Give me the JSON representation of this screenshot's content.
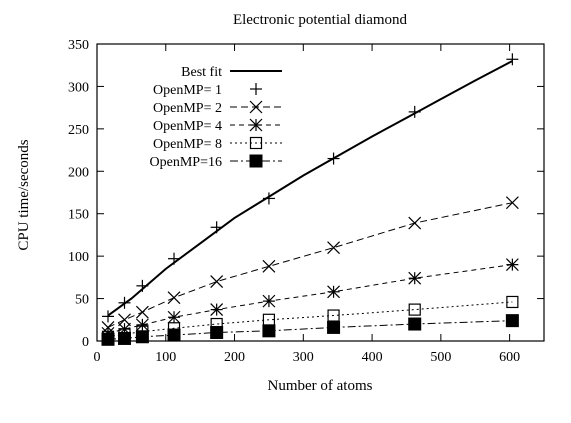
{
  "chart_data": {
    "type": "line",
    "title": "Electronic potential diamond",
    "xlabel": "Number of atoms",
    "ylabel": "CPU time/seconds",
    "xlim": [
      0,
      650
    ],
    "ylim": [
      0,
      350
    ],
    "xticks": [
      0,
      100,
      200,
      300,
      400,
      500,
      600
    ],
    "yticks": [
      0,
      50,
      100,
      150,
      200,
      250,
      300,
      350
    ],
    "grid": false,
    "legend_position": "top-left",
    "best_fit": {
      "name": "Best fit",
      "x": [
        16,
        50,
        100,
        150,
        200,
        250,
        300,
        350,
        400,
        450,
        500,
        550,
        604
      ],
      "y": [
        30,
        50,
        85,
        115,
        145,
        170,
        195,
        218,
        241,
        263,
        285,
        307,
        330
      ]
    },
    "series": [
      {
        "name": "OpenMP= 1",
        "marker": "plus",
        "x": [
          16,
          40,
          66,
          112,
          174,
          250,
          344,
          462,
          604
        ],
        "y": [
          29,
          45,
          65,
          97,
          134,
          168,
          215,
          270,
          332
        ]
      },
      {
        "name": "OpenMP= 2",
        "marker": "cross",
        "x": [
          16,
          40,
          66,
          112,
          174,
          250,
          344,
          462,
          604
        ],
        "y": [
          16,
          25,
          34,
          51,
          70,
          88,
          110,
          139,
          163
        ]
      },
      {
        "name": "OpenMP= 4",
        "marker": "star",
        "x": [
          16,
          40,
          66,
          112,
          174,
          250,
          344,
          462,
          604
        ],
        "y": [
          9,
          14,
          19,
          28,
          37,
          47,
          58,
          74,
          90
        ]
      },
      {
        "name": "OpenMP= 8",
        "marker": "open-square",
        "x": [
          16,
          40,
          66,
          112,
          174,
          250,
          344,
          462,
          604
        ],
        "y": [
          5,
          8,
          11,
          15,
          20,
          25,
          30,
          37,
          46
        ]
      },
      {
        "name": "OpenMP=16",
        "marker": "filled-square",
        "x": [
          16,
          40,
          66,
          112,
          174,
          250,
          344,
          462,
          604
        ],
        "y": [
          2,
          3,
          5,
          7,
          10,
          12,
          16,
          20,
          24
        ]
      }
    ]
  }
}
